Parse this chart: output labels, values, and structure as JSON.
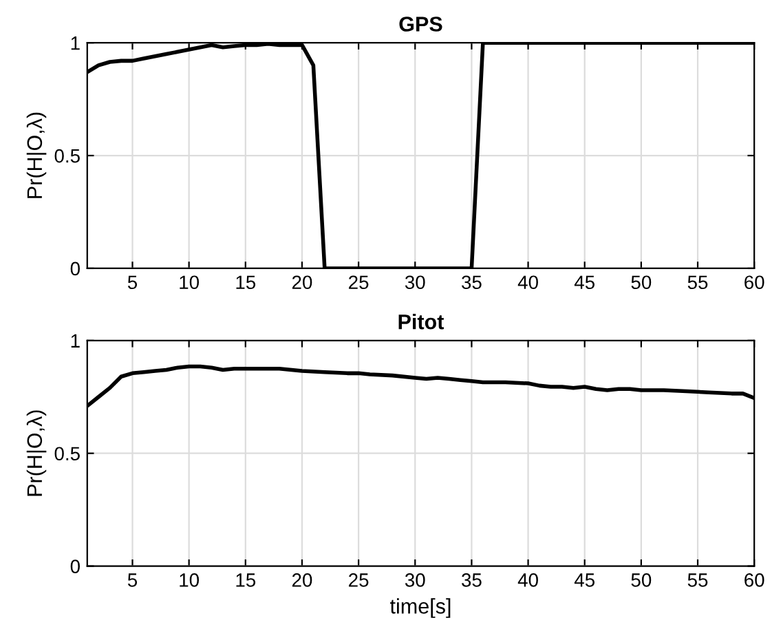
{
  "chart_data": [
    {
      "type": "line",
      "title": "GPS",
      "ylabel": "Pr(H|O,λ)",
      "x": [
        1,
        2,
        3,
        4,
        5,
        6,
        7,
        8,
        9,
        10,
        11,
        12,
        13,
        14,
        15,
        16,
        17,
        18,
        19,
        20,
        21,
        22,
        23,
        24,
        25,
        26,
        27,
        28,
        29,
        30,
        31,
        32,
        33,
        34,
        35,
        36,
        40,
        45,
        50,
        55,
        60
      ],
      "series": [
        {
          "color": "#000000",
          "values": [
            0.87,
            0.9,
            0.915,
            0.92,
            0.92,
            0.93,
            0.94,
            0.95,
            0.96,
            0.97,
            0.98,
            0.99,
            0.98,
            0.985,
            0.99,
            0.99,
            0.995,
            0.99,
            0.99,
            0.99,
            0.9,
            0,
            0,
            0,
            0,
            0,
            0,
            0,
            0,
            0,
            0,
            0,
            0,
            0,
            0,
            1,
            1,
            1,
            1,
            1,
            1
          ]
        }
      ],
      "xlim": [
        1,
        60
      ],
      "xticks": [
        5,
        10,
        15,
        20,
        25,
        30,
        35,
        40,
        45,
        50,
        55,
        60
      ],
      "ylim": [
        0,
        1
      ],
      "yticks": [
        0,
        0.5,
        1
      ],
      "grid": true
    },
    {
      "type": "line",
      "title": "Pitot",
      "xlabel": "time[s]",
      "ylabel": "Pr(H|O,λ)",
      "x": [
        1,
        2,
        3,
        4,
        5,
        6,
        7,
        8,
        9,
        10,
        11,
        12,
        13,
        14,
        15,
        17,
        18,
        20,
        22,
        24,
        25,
        26,
        28,
        30,
        31,
        32,
        33,
        34,
        35,
        36,
        38,
        40,
        41,
        42,
        43,
        44,
        45,
        46,
        47,
        48,
        49,
        50,
        52,
        54,
        56,
        58,
        59,
        60
      ],
      "series": [
        {
          "color": "#000000",
          "values": [
            0.71,
            0.75,
            0.79,
            0.84,
            0.855,
            0.86,
            0.865,
            0.87,
            0.88,
            0.885,
            0.885,
            0.88,
            0.87,
            0.875,
            0.875,
            0.875,
            0.875,
            0.865,
            0.86,
            0.855,
            0.855,
            0.85,
            0.845,
            0.835,
            0.83,
            0.835,
            0.83,
            0.825,
            0.82,
            0.815,
            0.815,
            0.81,
            0.8,
            0.795,
            0.795,
            0.79,
            0.795,
            0.785,
            0.78,
            0.785,
            0.785,
            0.78,
            0.78,
            0.775,
            0.77,
            0.765,
            0.765,
            0.745
          ]
        }
      ],
      "xlim": [
        1,
        60
      ],
      "xticks": [
        5,
        10,
        15,
        20,
        25,
        30,
        35,
        40,
        45,
        50,
        55,
        60
      ],
      "ylim": [
        0,
        1
      ],
      "yticks": [
        0,
        0.5,
        1
      ],
      "grid": true
    }
  ]
}
